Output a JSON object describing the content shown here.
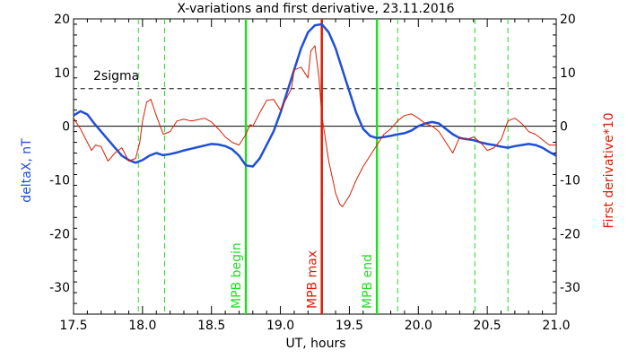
{
  "chart_data": {
    "type": "line",
    "title": "X-variations and first derivative, 23.11.2016",
    "xlabel": "UT, hours",
    "ylabel_left": "deltaX, nT",
    "ylabel_right": "First derivative*10",
    "xlim": [
      17.5,
      21.0
    ],
    "ylim": [
      -35,
      20
    ],
    "x_ticks": [
      17.5,
      18.0,
      18.5,
      19.0,
      19.5,
      20.0,
      20.5,
      21.0
    ],
    "x_tick_labels": [
      "17.5",
      "18.0",
      "18.5",
      "19.0",
      "19.5",
      "20.0",
      "20.5",
      "21.0"
    ],
    "y_ticks": [
      -30,
      -20,
      -10,
      0,
      10,
      20
    ],
    "y_tick_labels": [
      "-30",
      "-20",
      "-10",
      "0",
      "10",
      "20"
    ],
    "grid": false,
    "colors": {
      "deltaX": "#1f4fd6",
      "derivative": "#d81e05",
      "mpb": "#22dd22",
      "mpb_max": "#d81e05",
      "sigma": "#000000"
    },
    "sigma_level": 7,
    "sigma_label": "2sigma",
    "vertical_lines": [
      {
        "x": 18.75,
        "label": "MPB begin",
        "style": "solid",
        "color": "#22dd22"
      },
      {
        "x": 19.3,
        "label": "MPB max",
        "style": "solid",
        "color": "#d81e05"
      },
      {
        "x": 19.7,
        "label": "MPB end",
        "style": "solid",
        "color": "#22dd22"
      },
      {
        "x": 17.97,
        "label": "",
        "style": "dashed",
        "color": "#22dd22"
      },
      {
        "x": 18.16,
        "label": "",
        "style": "dashed",
        "color": "#22dd22"
      },
      {
        "x": 19.85,
        "label": "",
        "style": "dashed",
        "color": "#22dd22"
      },
      {
        "x": 20.41,
        "label": "",
        "style": "dashed",
        "color": "#22dd22"
      },
      {
        "x": 20.65,
        "label": "",
        "style": "dashed",
        "color": "#22dd22"
      }
    ],
    "series": [
      {
        "key": "deltaX",
        "x": [
          17.5,
          17.55,
          17.6,
          17.65,
          17.7,
          17.75,
          17.8,
          17.85,
          17.9,
          17.95,
          18.0,
          18.05,
          18.1,
          18.15,
          18.2,
          18.25,
          18.3,
          18.35,
          18.4,
          18.45,
          18.5,
          18.55,
          18.6,
          18.65,
          18.7,
          18.75,
          18.8,
          18.85,
          18.9,
          18.95,
          19.0,
          19.05,
          19.1,
          19.15,
          19.2,
          19.25,
          19.3,
          19.35,
          19.4,
          19.45,
          19.5,
          19.55,
          19.6,
          19.65,
          19.7,
          19.75,
          19.8,
          19.85,
          19.9,
          19.95,
          20.0,
          20.05,
          20.1,
          20.15,
          20.2,
          20.25,
          20.3,
          20.35,
          20.4,
          20.45,
          20.5,
          20.55,
          20.6,
          20.65,
          20.7,
          20.75,
          20.8,
          20.85,
          20.9,
          20.95,
          21.0
        ],
        "values": [
          2.0,
          2.8,
          2.2,
          0.5,
          -1.0,
          -2.5,
          -4.0,
          -5.5,
          -6.3,
          -6.8,
          -6.3,
          -5.5,
          -5.0,
          -5.4,
          -5.2,
          -4.9,
          -4.5,
          -4.2,
          -3.9,
          -3.6,
          -3.3,
          -3.4,
          -3.7,
          -4.3,
          -5.5,
          -7.3,
          -7.5,
          -6.0,
          -3.5,
          -1.0,
          2.5,
          6.5,
          10.5,
          14.5,
          17.5,
          18.8,
          19.0,
          17.5,
          14.5,
          10.5,
          6.5,
          2.5,
          -0.5,
          -1.8,
          -2.2,
          -2.0,
          -1.8,
          -1.5,
          -1.3,
          -0.8,
          0.0,
          0.5,
          0.8,
          0.5,
          -0.5,
          -1.5,
          -2.2,
          -2.4,
          -2.6,
          -3.0,
          -3.3,
          -3.5,
          -3.8,
          -4.0,
          -3.7,
          -3.5,
          -3.3,
          -3.5,
          -4.0,
          -4.8,
          -5.5
        ]
      },
      {
        "key": "derivative",
        "x": [
          17.5,
          17.55,
          17.6,
          17.63,
          17.66,
          17.7,
          17.75,
          17.8,
          17.85,
          17.9,
          17.95,
          17.98,
          18.0,
          18.03,
          18.06,
          18.1,
          18.15,
          18.2,
          18.25,
          18.3,
          18.35,
          18.4,
          18.45,
          18.5,
          18.55,
          18.6,
          18.65,
          18.7,
          18.75,
          18.78,
          18.8,
          18.85,
          18.9,
          18.95,
          19.0,
          19.05,
          19.08,
          19.1,
          19.15,
          19.2,
          19.22,
          19.25,
          19.28,
          19.3,
          19.33,
          19.35,
          19.38,
          19.4,
          19.43,
          19.45,
          19.5,
          19.55,
          19.6,
          19.65,
          19.7,
          19.75,
          19.8,
          19.85,
          19.9,
          19.95,
          20.0,
          20.05,
          20.1,
          20.15,
          20.2,
          20.25,
          20.3,
          20.35,
          20.4,
          20.45,
          20.5,
          20.55,
          20.6,
          20.65,
          20.7,
          20.75,
          20.8,
          20.85,
          20.9,
          20.95,
          21.0
        ],
        "values": [
          1.5,
          -0.5,
          -3.0,
          -4.5,
          -3.5,
          -3.8,
          -6.5,
          -5.0,
          -4.0,
          -6.5,
          -6.0,
          -3.0,
          1.0,
          4.5,
          5.0,
          2.0,
          -1.5,
          -1.0,
          1.0,
          1.3,
          1.0,
          1.2,
          1.5,
          0.8,
          -0.5,
          -2.0,
          -3.0,
          -3.5,
          -1.5,
          0.3,
          0.0,
          2.5,
          4.8,
          5.0,
          3.0,
          5.5,
          7.0,
          10.5,
          11.0,
          9.0,
          14.0,
          15.0,
          9.0,
          2.0,
          -3.0,
          -6.5,
          -10.0,
          -12.5,
          -14.5,
          -15.0,
          -13.0,
          -10.0,
          -7.5,
          -5.5,
          -3.5,
          -1.5,
          -0.5,
          1.0,
          2.0,
          2.3,
          1.5,
          0.5,
          0.0,
          -1.0,
          -3.0,
          -5.0,
          -2.0,
          -2.5,
          -2.0,
          -3.0,
          -4.5,
          -4.0,
          -2.5,
          1.0,
          1.5,
          0.5,
          -1.0,
          -1.5,
          -2.5,
          -3.5,
          -3.5
        ]
      }
    ]
  }
}
